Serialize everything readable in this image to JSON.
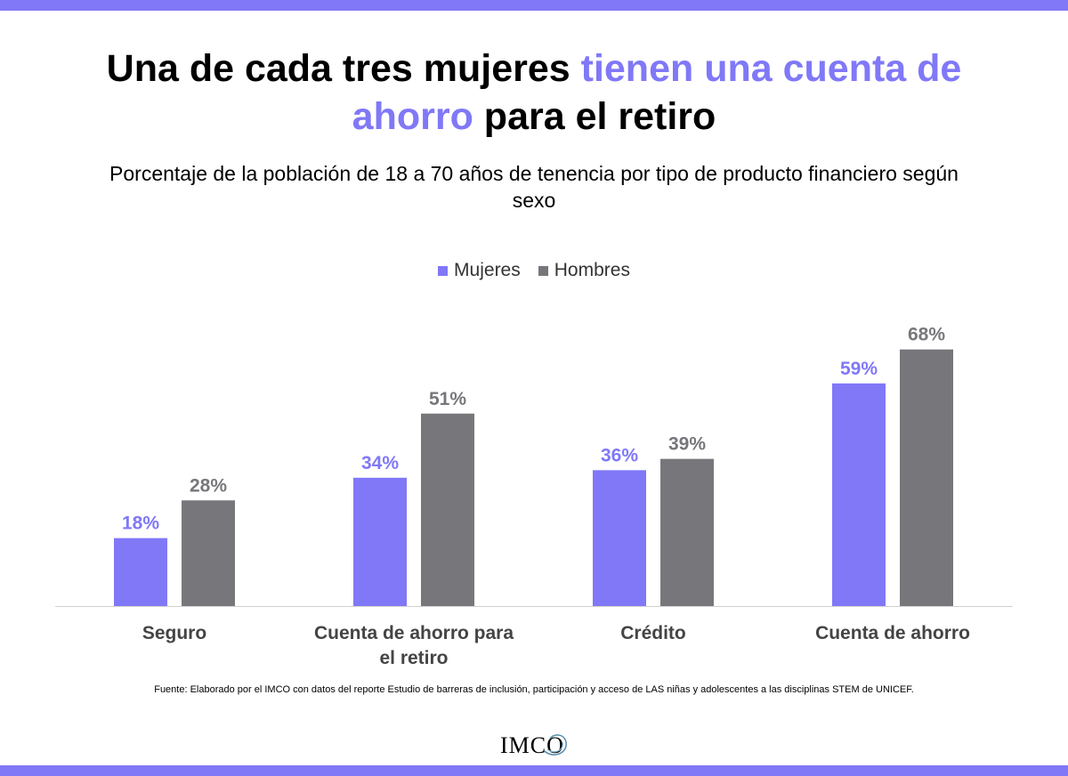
{
  "title": {
    "part1": "Una de cada tres mujeres ",
    "accent": "tienen una cuenta de ahorro",
    "part2": " para el retiro"
  },
  "subtitle": "Porcentaje de la población de 18 a 70 años de tenencia por tipo de producto financiero según sexo",
  "source": "Fuente: Elaborado por el IMCO con datos del reporte Estudio de barreras de inclusión, participación y acceso de LAS niñas y adolescentes a las disciplinas STEM de UNICEF.",
  "logo_text": "IMCO",
  "colors": {
    "accent": "#8078f7",
    "mujeres": "#8078f7",
    "hombres": "#77777b"
  },
  "chart_data": {
    "type": "bar",
    "categories": [
      [
        "Seguro"
      ],
      [
        "Cuenta de ahorro para",
        "el retiro"
      ],
      [
        "Crédito"
      ],
      [
        "Cuenta de ahorro"
      ]
    ],
    "series": [
      {
        "name": "Mujeres",
        "values": [
          18,
          34,
          36,
          59
        ],
        "color": "#8078f7",
        "labels": [
          "18%",
          "34%",
          "36%",
          "59%"
        ]
      },
      {
        "name": "Hombres",
        "values": [
          28,
          51,
          39,
          68
        ],
        "color": "#77777b",
        "labels": [
          "28%",
          "51%",
          "39%",
          "68%"
        ]
      }
    ],
    "ylim": [
      0,
      70
    ],
    "legend": "top-center",
    "grid": false
  }
}
